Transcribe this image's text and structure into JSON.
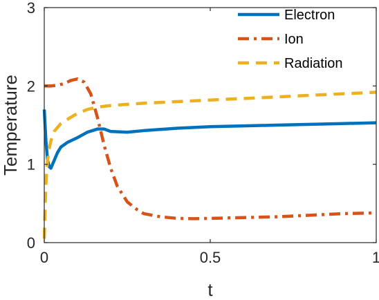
{
  "chart_data": {
    "type": "line",
    "title": "",
    "xlabel": "t",
    "ylabel": "Temperature",
    "xlim": [
      0,
      1
    ],
    "ylim": [
      0,
      3
    ],
    "xticks": [
      0,
      0.5,
      1
    ],
    "xtick_labels": [
      "0",
      "0.5",
      "1"
    ],
    "yticks": [
      0,
      1,
      2,
      3
    ],
    "ytick_labels": [
      "0",
      "1",
      "2",
      "3"
    ],
    "grid": false,
    "legend_position": "top-right",
    "series": [
      {
        "name": "Electron",
        "color": "#0072BD",
        "style": "solid",
        "x": [
          0,
          0.005,
          0.01,
          0.015,
          0.02,
          0.03,
          0.04,
          0.05,
          0.07,
          0.1,
          0.13,
          0.16,
          0.18,
          0.2,
          0.25,
          0.3,
          0.4,
          0.5,
          0.6,
          0.7,
          0.8,
          0.9,
          1.0
        ],
        "y": [
          1.7,
          1.3,
          1.05,
          0.97,
          0.95,
          1.05,
          1.15,
          1.22,
          1.28,
          1.34,
          1.41,
          1.45,
          1.45,
          1.42,
          1.41,
          1.43,
          1.46,
          1.48,
          1.49,
          1.5,
          1.51,
          1.52,
          1.53
        ]
      },
      {
        "name": "Ion",
        "color": "#D95319",
        "style": "dashdot",
        "x": [
          0,
          0.02,
          0.04,
          0.06,
          0.08,
          0.1,
          0.12,
          0.14,
          0.16,
          0.18,
          0.2,
          0.22,
          0.25,
          0.28,
          0.3,
          0.35,
          0.4,
          0.45,
          0.5,
          0.6,
          0.7,
          0.8,
          0.9,
          1.0
        ],
        "y": [
          2.0,
          2.0,
          2.01,
          2.03,
          2.07,
          2.09,
          2.05,
          1.9,
          1.6,
          1.25,
          0.95,
          0.72,
          0.52,
          0.42,
          0.37,
          0.33,
          0.31,
          0.305,
          0.31,
          0.32,
          0.33,
          0.35,
          0.37,
          0.38
        ]
      },
      {
        "name": "Radiation",
        "color": "#EDB120",
        "style": "dashed",
        "x": [
          0,
          0.003,
          0.006,
          0.01,
          0.015,
          0.02,
          0.03,
          0.05,
          0.08,
          0.1,
          0.13,
          0.16,
          0.2,
          0.3,
          0.4,
          0.5,
          0.6,
          0.7,
          0.8,
          0.9,
          1.0
        ],
        "y": [
          0.05,
          0.5,
          0.85,
          1.05,
          1.2,
          1.3,
          1.42,
          1.52,
          1.6,
          1.65,
          1.7,
          1.73,
          1.75,
          1.78,
          1.8,
          1.82,
          1.84,
          1.86,
          1.88,
          1.9,
          1.92
        ]
      }
    ]
  }
}
